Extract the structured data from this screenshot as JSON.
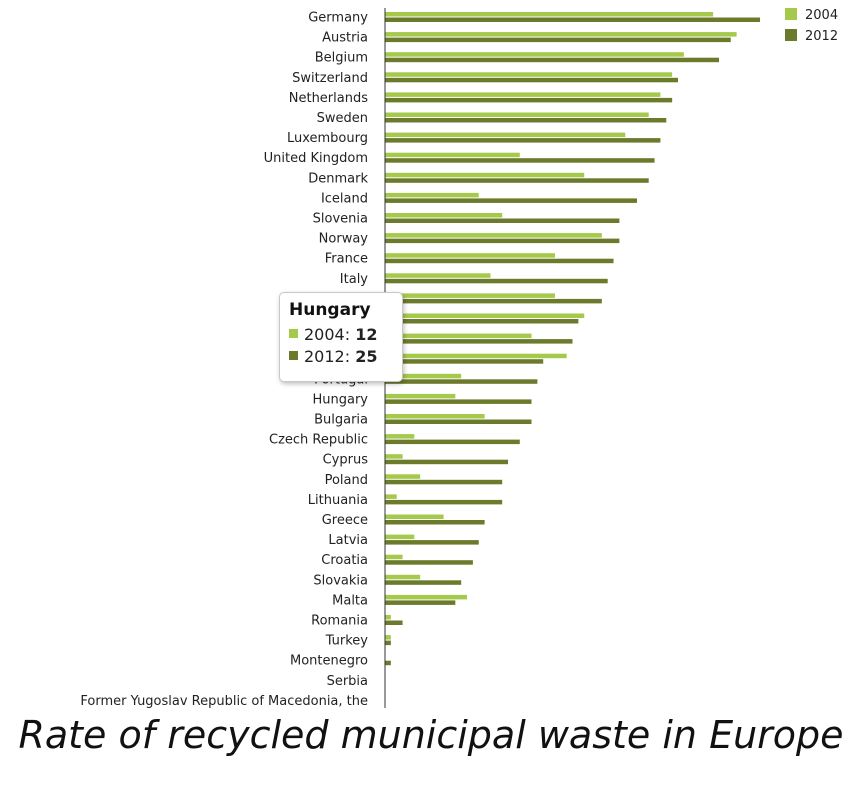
{
  "caption": "Rate of recycled municipal waste in Europe",
  "colors": {
    "s2004": "#a5c94a",
    "s2012": "#6b7a2b",
    "axis": "#333333"
  },
  "tooltip": {
    "title": "Hungary",
    "rows": [
      {
        "label": "2004: ",
        "value": "12"
      },
      {
        "label": "2012: ",
        "value": "25"
      }
    ]
  },
  "chart_data": {
    "type": "bar",
    "orientation": "horizontal",
    "title": "Rate of recycled municipal waste in Europe",
    "xlabel": "",
    "ylabel": "",
    "xlim": [
      0,
      70
    ],
    "ticks": [
      "0%",
      "10%",
      "20%",
      "30%",
      "40%",
      "50%",
      "60%"
    ],
    "tick_values": [
      0,
      10,
      20,
      30,
      40,
      50,
      60
    ],
    "legend_position": "top-right",
    "grid": false,
    "categories": [
      "Germany",
      "Austria",
      "Belgium",
      "Switzerland",
      "Netherlands",
      "Sweden",
      "Luxembourg",
      "United Kingdom",
      "Denmark",
      "Iceland",
      "Slovenia",
      "Norway",
      "France",
      "Italy",
      "",
      "",
      "",
      "",
      "Portugal",
      "Hungary",
      "Bulgaria",
      "Czech Republic",
      "Cyprus",
      "Poland",
      "Lithuania",
      "Greece",
      "Latvia",
      "Croatia",
      "Slovakia",
      "Malta",
      "Romania",
      "Turkey",
      "Montenegro",
      "Serbia",
      "Former Yugoslav Republic of Macedonia, the"
    ],
    "series": [
      {
        "name": "2004",
        "values": [
          56,
          60,
          51,
          49,
          47,
          45,
          41,
          23,
          34,
          16,
          20,
          37,
          29,
          18,
          29,
          34,
          25,
          31,
          13,
          12,
          17,
          5,
          3,
          6,
          2,
          10,
          5,
          3,
          6,
          14,
          1,
          1,
          0,
          0,
          0
        ]
      },
      {
        "name": "2012",
        "values": [
          64,
          59,
          57,
          50,
          49,
          48,
          47,
          46,
          45,
          43,
          40,
          40,
          39,
          38,
          37,
          33,
          32,
          27,
          26,
          25,
          25,
          23,
          21,
          20,
          20,
          17,
          16,
          15,
          13,
          12,
          3,
          1,
          1,
          0,
          0
        ]
      }
    ]
  }
}
